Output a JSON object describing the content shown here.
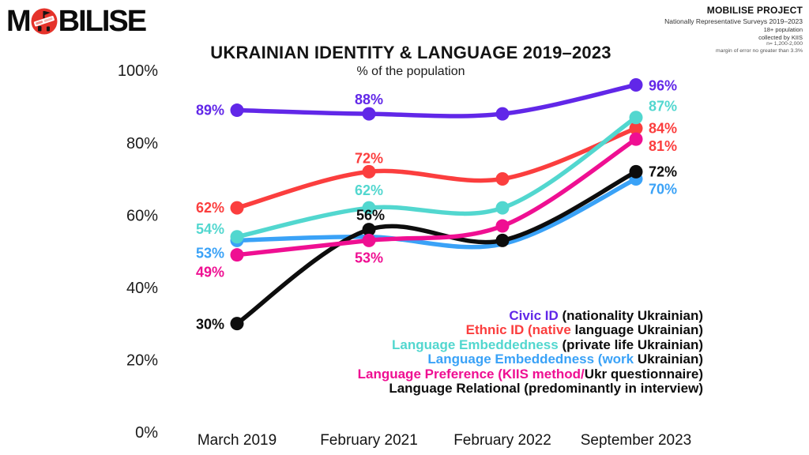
{
  "header": {
    "logo": {
      "part1": "M",
      "part2": "BILISE",
      "circle_color": "#e5332b"
    },
    "project": {
      "title": "MOBILISE PROJECT",
      "lines": [
        "Nationally Representative Surveys 2019–2023",
        "18+ population",
        "collected by KIIS",
        "n= 1,200-2,000",
        "margin of error no greater than 3.3%"
      ]
    }
  },
  "chart": {
    "title": "UKRAINIAN IDENTITY & LANGUAGE  2019–2023",
    "subtitle": "% of the population"
  },
  "chart_data": {
    "type": "line",
    "title": "UKRAINIAN IDENTITY & LANGUAGE 2019–2023",
    "subtitle": "% of the population",
    "categories": [
      "March 2019",
      "February 2021",
      "February 2022",
      "September 2023"
    ],
    "y_ticks": [
      {
        "value": 0,
        "label": "0%"
      },
      {
        "value": 20,
        "label": "20%"
      },
      {
        "value": 40,
        "label": "40%"
      },
      {
        "value": 60,
        "label": "60%"
      },
      {
        "value": 80,
        "label": "80%"
      },
      {
        "value": 100,
        "label": "100%"
      }
    ],
    "ylim": [
      0,
      100
    ],
    "grid": false,
    "legend_position": "bottom-right",
    "series": [
      {
        "name": "Civic ID (nationality Ukrainian)",
        "color": "#6127e8",
        "values": [
          89,
          88,
          88,
          96
        ],
        "dots": [
          true,
          true,
          true,
          true
        ],
        "point_labels": [
          {
            "text": "89%",
            "anchor": "end",
            "dx": -16,
            "dy": 6
          },
          {
            "text": "88%",
            "anchor": "middle",
            "dx": 0,
            "dy": -12
          },
          null,
          {
            "text": "96%",
            "anchor": "start",
            "dx": 16,
            "dy": 7
          }
        ]
      },
      {
        "name": "Ethnic ID (native language Ukrainian)",
        "color": "#fb3e3e",
        "values": [
          62,
          72,
          70,
          84
        ],
        "dots": [
          true,
          true,
          true,
          true
        ],
        "point_labels": [
          {
            "text": "62%",
            "anchor": "end",
            "dx": -16,
            "dy": 6
          },
          {
            "text": "72%",
            "anchor": "middle",
            "dx": 0,
            "dy": -11
          },
          null,
          {
            "text": "84%",
            "anchor": "start",
            "dx": 16,
            "dy": 6
          }
        ]
      },
      {
        "name": "Language Embeddedness (private life Ukrainian)",
        "color": "#52d7cf",
        "values": [
          54,
          62,
          62,
          87
        ],
        "dots": [
          true,
          true,
          true,
          true
        ],
        "point_labels": [
          {
            "text": "54%",
            "anchor": "end",
            "dx": -16,
            "dy": -4
          },
          {
            "text": "62%",
            "anchor": "middle",
            "dx": 0,
            "dy": -16
          },
          null,
          {
            "text": "87%",
            "anchor": "start",
            "dx": 16,
            "dy": -8
          }
        ]
      },
      {
        "name": "Language Embeddedness (work Ukrainian)",
        "color": "#3aa2f7",
        "values": [
          53,
          54,
          52,
          70
        ],
        "dots": [
          true,
          false,
          false,
          true
        ],
        "point_labels": [
          {
            "text": "53%",
            "anchor": "end",
            "dx": -16,
            "dy": 22
          },
          null,
          null,
          {
            "text": "70%",
            "anchor": "start",
            "dx": 16,
            "dy": 19
          }
        ]
      },
      {
        "name": "Language Preference (KIIS method/Ukr questionnaire)",
        "color": "#ef0f92",
        "values": [
          49,
          53,
          57,
          81
        ],
        "dots": [
          true,
          true,
          true,
          true
        ],
        "point_labels": [
          {
            "text": "49%",
            "anchor": "end",
            "dx": -16,
            "dy": 28
          },
          {
            "text": "53%",
            "anchor": "middle",
            "dx": 0,
            "dy": 28
          },
          null,
          {
            "text": "81%",
            "anchor": "start",
            "dx": 16,
            "dy": 15,
            "color": "#fb3e3e"
          }
        ]
      },
      {
        "name": "Language Relational (predominantly in interview)",
        "color": "#0d0d0d",
        "values": [
          30,
          56,
          53,
          72
        ],
        "dots": [
          true,
          true,
          true,
          true
        ],
        "point_labels": [
          {
            "text": "30%",
            "anchor": "end",
            "dx": -16,
            "dy": 7
          },
          {
            "text": "56%",
            "anchor": "middle",
            "dx": 2,
            "dy": -12
          },
          null,
          {
            "text": "72%",
            "anchor": "start",
            "dx": 16,
            "dy": 6
          }
        ]
      }
    ]
  },
  "legend": {
    "items": [
      {
        "segments": [
          {
            "text": "Civic ID",
            "color": "#6127e8"
          },
          {
            "text": " (nationality Ukrainian)",
            "color": "#0d0d0d"
          }
        ]
      },
      {
        "segments": [
          {
            "text": "Ethnic ID (native",
            "color": "#fb3e3e"
          },
          {
            "text": " language Ukrainian)",
            "color": "#0d0d0d"
          }
        ]
      },
      {
        "segments": [
          {
            "text": "Language Embeddedness",
            "color": "#52d7cf"
          },
          {
            "text": " (private life Ukrainian)",
            "color": "#0d0d0d"
          }
        ]
      },
      {
        "segments": [
          {
            "text": "Language Embeddedness (work",
            "color": "#3aa2f7"
          },
          {
            "text": " Ukrainian)",
            "color": "#0d0d0d"
          }
        ]
      },
      {
        "segments": [
          {
            "text": "Language Preference (KIIS method/",
            "color": "#ef0f92"
          },
          {
            "text": "Ukr questionnaire)",
            "color": "#0d0d0d"
          }
        ]
      },
      {
        "segments": [
          {
            "text": "Language Relational (predominantly in interview)",
            "color": "#0d0d0d"
          }
        ]
      }
    ]
  }
}
